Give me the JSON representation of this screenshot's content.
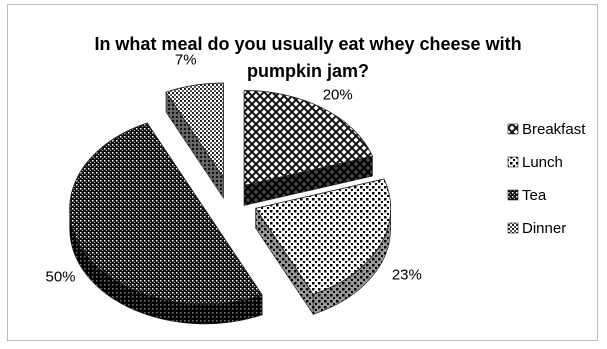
{
  "chart_data": {
    "type": "pie",
    "style": "3d-exploded",
    "title_line1": "In what meal do you usually eat whey cheese with",
    "title_line2": "pumpkin jam?",
    "categories": [
      "Breakfast",
      "Lunch",
      "Tea",
      "Dinner"
    ],
    "values": [
      20,
      23,
      50,
      7
    ],
    "labels": [
      "20%",
      "23%",
      "50%",
      "7%"
    ],
    "legend_position": "right"
  }
}
